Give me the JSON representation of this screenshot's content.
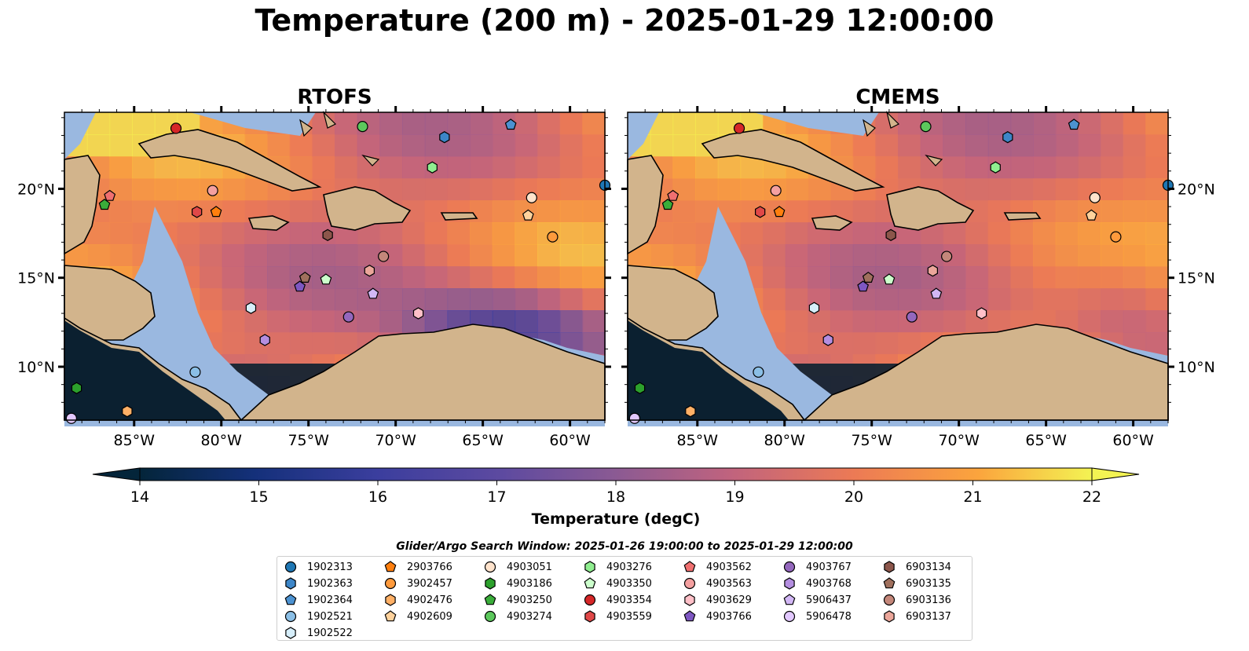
{
  "title": "Temperature (200 m) - 2025-01-29 12:00:00",
  "panels": [
    {
      "title": "RTOFS",
      "id": "rtofs"
    },
    {
      "title": "CMEMS",
      "id": "cmems"
    }
  ],
  "map": {
    "lon_range": [
      -89,
      -58
    ],
    "lat_range": [
      7,
      24.3
    ],
    "lon_ticks": [
      "85°W",
      "80°W",
      "75°W",
      "70°W",
      "65°W",
      "60°W"
    ],
    "lat_ticks": [
      "20°N",
      "15°N",
      "10°N"
    ],
    "colors": {
      "land": "#d2b48c",
      "shelf": "#9ab8e0",
      "coast": "#000000"
    }
  },
  "colorbar": {
    "label": "Temperature (degC)",
    "min": 14,
    "max": 22,
    "step": 0.5,
    "ticks": [
      "14",
      "15",
      "16",
      "17",
      "18",
      "19",
      "20",
      "21",
      "22"
    ],
    "extend": "both",
    "colormap": "thermal"
  },
  "legend": {
    "title": "Glider/Argo Search Window: 2025-01-26 19:00:00 to 2025-01-29 12:00:00",
    "items": [
      {
        "id": "1902313",
        "marker": "circle",
        "color": "#1f77b4",
        "lon": -58,
        "lat": 20.2
      },
      {
        "id": "1902363",
        "marker": "hexagon",
        "color": "#3d86c8",
        "lon": -67.2,
        "lat": 22.9
      },
      {
        "id": "1902364",
        "marker": "pentagon",
        "color": "#4c92d1",
        "lon": -63.4,
        "lat": 23.6
      },
      {
        "id": "1902521",
        "marker": "circle",
        "color": "#8bbfe6",
        "lon": -81.5,
        "lat": 9.7
      },
      {
        "id": "1902522",
        "marker": "hexagon",
        "color": "#d6eefa",
        "lon": -78.3,
        "lat": 13.3
      },
      {
        "id": "2903766",
        "marker": "pentagon",
        "color": "#ff7f0e",
        "lon": -80.3,
        "lat": 18.7
      },
      {
        "id": "3902457",
        "marker": "circle",
        "color": "#ff9a3c",
        "lon": -61,
        "lat": 17.3
      },
      {
        "id": "4902476",
        "marker": "hexagon",
        "color": "#ffb066",
        "lon": -85.4,
        "lat": 7.5
      },
      {
        "id": "4902609",
        "marker": "pentagon",
        "color": "#ffd29c",
        "lon": -62.4,
        "lat": 18.5
      },
      {
        "id": "4903051",
        "marker": "circle",
        "color": "#ffe3cc",
        "lon": -62.2,
        "lat": 19.5
      },
      {
        "id": "4903186",
        "marker": "hexagon",
        "color": "#2ca02c",
        "lon": -88.3,
        "lat": 8.8
      },
      {
        "id": "4903250",
        "marker": "pentagon",
        "color": "#3aad3a",
        "lon": -86.7,
        "lat": 19.1
      },
      {
        "id": "4903274",
        "marker": "circle",
        "color": "#5cc85c",
        "lon": -71.9,
        "lat": 23.5
      },
      {
        "id": "4903276",
        "marker": "hexagon",
        "color": "#90ee90",
        "lon": -67.9,
        "lat": 21.2
      },
      {
        "id": "4903350",
        "marker": "pentagon",
        "color": "#ccffcc",
        "lon": -74,
        "lat": 14.9
      },
      {
        "id": "4903354",
        "marker": "circle",
        "color": "#d62728",
        "lon": -82.6,
        "lat": 23.4
      },
      {
        "id": "4903559",
        "marker": "hexagon",
        "color": "#e04848",
        "lon": -81.4,
        "lat": 18.7
      },
      {
        "id": "4903562",
        "marker": "pentagon",
        "color": "#f07070",
        "lon": -86.4,
        "lat": 19.6
      },
      {
        "id": "4903563",
        "marker": "circle",
        "color": "#f4a0a0",
        "lon": -80.5,
        "lat": 19.9
      },
      {
        "id": "4903629",
        "marker": "hexagon",
        "color": "#ffc0c8",
        "lon": -68.7,
        "lat": 13
      },
      {
        "id": "4903766",
        "marker": "pentagon",
        "color": "#7e57c2",
        "lon": -75.5,
        "lat": 14.5
      },
      {
        "id": "4903767",
        "marker": "circle",
        "color": "#9467bd",
        "lon": -72.7,
        "lat": 12.8
      },
      {
        "id": "4903768",
        "marker": "hexagon",
        "color": "#b48ee0",
        "lon": -77.5,
        "lat": 11.5
      },
      {
        "id": "5906437",
        "marker": "pentagon",
        "color": "#d2b7f5",
        "lon": -71.3,
        "lat": 14.1
      },
      {
        "id": "5906478",
        "marker": "circle",
        "color": "#e2c8ff",
        "lon": -88.6,
        "lat": 7.1
      },
      {
        "id": "6903134",
        "marker": "hexagon",
        "color": "#8c564b",
        "lon": -73.9,
        "lat": 17.4
      },
      {
        "id": "6903135",
        "marker": "pentagon",
        "color": "#a0705d",
        "lon": -75.2,
        "lat": 15
      },
      {
        "id": "6903136",
        "marker": "circle",
        "color": "#c4877a",
        "lon": -70.7,
        "lat": 16.2
      },
      {
        "id": "6903137",
        "marker": "hexagon",
        "color": "#eba69a",
        "lon": -71.5,
        "lat": 15.4
      }
    ]
  }
}
